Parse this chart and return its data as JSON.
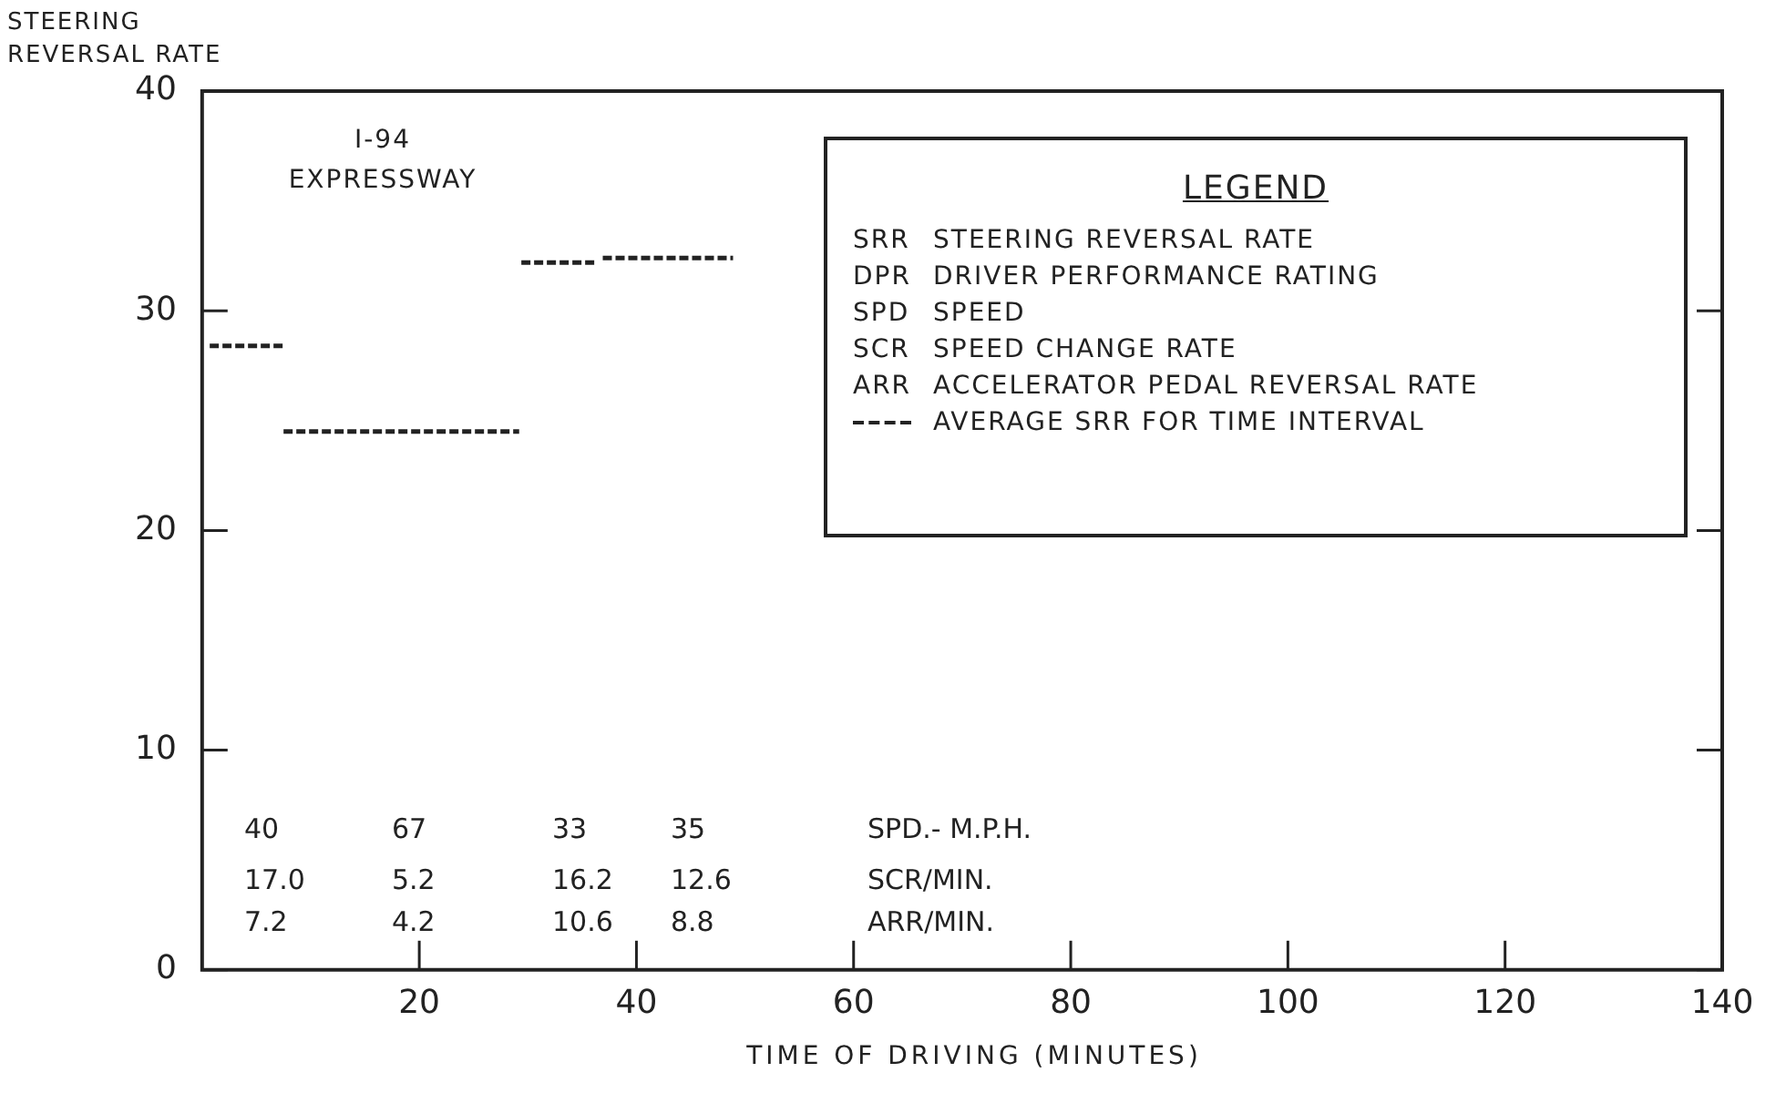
{
  "chart_data": {
    "type": "line",
    "title": "I-94 EXPRESSWAY",
    "xlabel": "TIME OF DRIVING (MINUTES)",
    "ylabel": "STEERING REVERSAL RATE",
    "legend_title": "LEGEND",
    "legend": "top right",
    "grid": false,
    "marker": "none",
    "line_style": "dashed",
    "xlim": [
      0,
      140
    ],
    "xticks": [
      20,
      40,
      60,
      80,
      100,
      120,
      140
    ],
    "ylim": [
      0,
      40
    ],
    "yticks": [
      0,
      10,
      20,
      30,
      40
    ],
    "series": [
      {
        "name": "AVERAGE SRR FOR TIME INTERVAL",
        "color": "#222222",
        "x": [
          0.7,
          7.5
        ],
        "values": [
          28.4,
          28.4
        ]
      },
      {
        "color": "#222222",
        "x": [
          7.5,
          29.2
        ],
        "values": [
          24.5,
          24.5
        ]
      },
      {
        "color": "#222222",
        "x": [
          29.4,
          36.4
        ],
        "values": [
          32.2,
          32.2
        ]
      },
      {
        "color": "#222222",
        "x": [
          36.9,
          48.9
        ],
        "values": [
          32.4,
          32.4
        ]
      }
    ],
    "annotations": [
      "SRR STEERING REVERSAL RATE",
      "DPR DRIVER PERFORMANCE RATING",
      "SPD SPEED",
      "SCR SPEED CHANGE RATE",
      "ARR ACCELERATOR PEDAL REVERSAL RATE",
      "40",
      "67",
      "33",
      "35",
      "SPD.- M.P.H.",
      "17.0",
      "5.2",
      "16.2",
      "12.6",
      "SCR/MIN.",
      "7.2",
      "4.2",
      "10.6",
      "8.8",
      "ARR/MIN."
    ]
  }
}
